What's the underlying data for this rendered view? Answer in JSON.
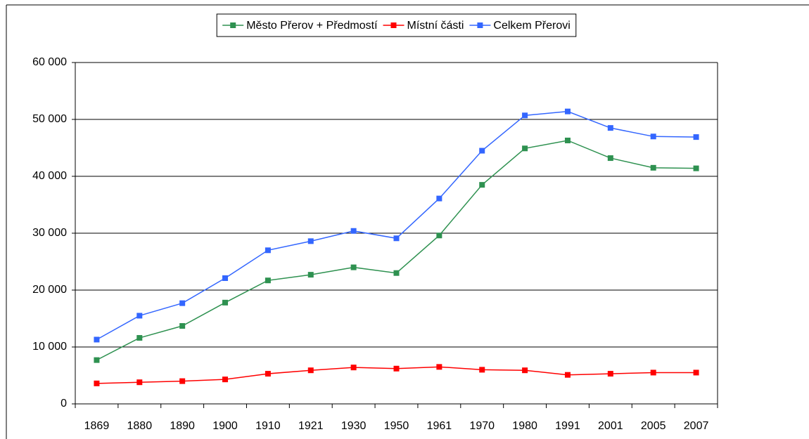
{
  "chart_data": {
    "type": "line",
    "categories": [
      "1869",
      "1880",
      "1890",
      "1900",
      "1910",
      "1921",
      "1930",
      "1950",
      "1961",
      "1970",
      "1980",
      "1991",
      "2001",
      "2005",
      "2007"
    ],
    "series": [
      {
        "name": "Město Přerov + Předmostí",
        "color": "#2e9150",
        "values": [
          7700,
          11600,
          13700,
          17800,
          21700,
          22700,
          24000,
          23000,
          29600,
          38500,
          44900,
          46300,
          43200,
          41500,
          41400
        ]
      },
      {
        "name": "Místní části",
        "color": "#ff0000",
        "values": [
          3600,
          3800,
          4000,
          4300,
          5300,
          5900,
          6400,
          6200,
          6500,
          6000,
          5900,
          5100,
          5300,
          5500,
          5500
        ]
      },
      {
        "name": "Celkem Přerovi",
        "color": "#3366ff",
        "values": [
          11300,
          15500,
          17700,
          22100,
          27000,
          28600,
          30400,
          29100,
          36100,
          44500,
          50700,
          51400,
          48500,
          47000,
          46900
        ]
      }
    ],
    "ylim": [
      0,
      60000
    ],
    "yticks": [
      {
        "value": 0,
        "label": "0"
      },
      {
        "value": 10000,
        "label": "10 000"
      },
      {
        "value": 20000,
        "label": "20 000"
      },
      {
        "value": 30000,
        "label": "30 000"
      },
      {
        "value": 40000,
        "label": "40 000"
      },
      {
        "value": 50000,
        "label": "50 000"
      },
      {
        "value": 60000,
        "label": "60 000"
      }
    ],
    "grid": true,
    "legend": "top"
  }
}
